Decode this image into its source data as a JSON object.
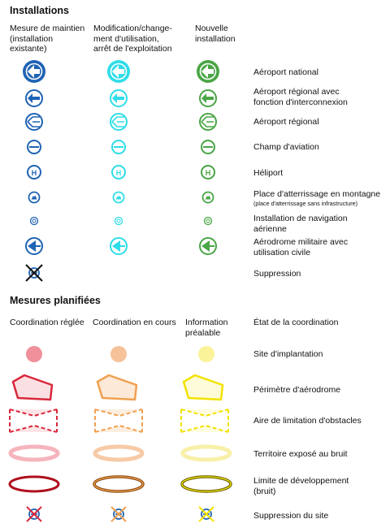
{
  "installations": {
    "title": "Installations",
    "columns": [
      "Mesure de maintien\n(installation\nexistante)",
      "Modification/change-\nment d'utilisation,\narrêt de l'exploitation",
      "Nouvelle\ninstallation"
    ],
    "rows": [
      {
        "label": "Aéroport national",
        "icon": "national-airport-icon"
      },
      {
        "label": "Aéroport régional avec\nfonction d'interconnexion",
        "icon": "regional-airport-interconnection-icon"
      },
      {
        "label": "Aéroport régional",
        "icon": "regional-airport-icon"
      },
      {
        "label": "Champ d'aviation",
        "icon": "airfield-icon"
      },
      {
        "label": "Héliport",
        "icon": "heliport-icon"
      },
      {
        "label": "Place d'atterrissage en montagne",
        "sublabel": "(place d'atterrissage sans infrastructure)",
        "icon": "mountain-landing-icon"
      },
      {
        "label": "Installation de navigation\naérienne",
        "icon": "air-navigation-icon"
      },
      {
        "label": "Aérodrome militaire avec\nutilisation civile",
        "icon": "military-aerodrome-icon"
      },
      {
        "label": "Suppression",
        "icon": "suppression-icon"
      }
    ],
    "colors": [
      "#1f63b4",
      "#2fdde8",
      "#4aa546"
    ]
  },
  "planned": {
    "title": "Mesures planifiées",
    "columns": [
      "Coordination réglée",
      "Coordination en cours",
      "Information\npréalable"
    ],
    "header_label": "État de la coordination",
    "rows": [
      {
        "label": "Site d'implantation",
        "icon": "site-dot-icon"
      },
      {
        "label": "Périmètre d'aérodrome",
        "icon": "aerodrome-perimeter-icon"
      },
      {
        "label": "Aire de limitation d'obstacles",
        "icon": "obstacle-limitation-icon"
      },
      {
        "label": "Territoire exposé au bruit",
        "icon": "noise-territory-icon"
      },
      {
        "label": "Limite de développement\n(bruit)",
        "icon": "development-limit-icon"
      },
      {
        "label": "Suppression du site",
        "icon": "site-suppression-icon"
      }
    ],
    "colors": {
      "regle": {
        "fill": "#f0909a",
        "stroke": "#d8283c",
        "light": "#f6b4bc"
      },
      "encours": {
        "fill": "#f5c29a",
        "stroke": "#f0a050",
        "light": "#f7caa6"
      },
      "prealable": {
        "fill": "#fbf39a",
        "stroke": "#f2e200",
        "light": "#f8f0a8"
      }
    }
  }
}
